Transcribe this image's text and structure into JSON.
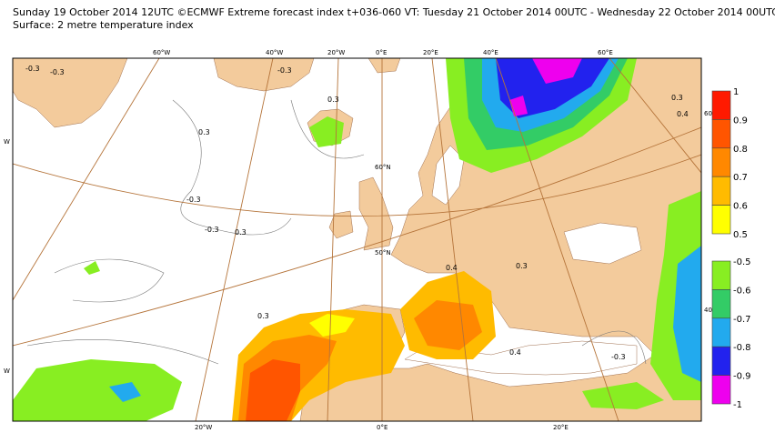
{
  "header": {
    "title": "Sunday 19 October 2014 12UTC ©ECMWF Extreme forecast index t+036-060 VT: Tuesday 21 October 2014 00UTC - Wednesday 22 October 2014 00UTC",
    "subtitle": "Surface: 2 metre temperature index"
  },
  "legend": {
    "positive": {
      "labels": [
        1,
        0.9,
        0.8,
        0.7,
        0.6,
        0.5
      ],
      "colors": [
        "#ff1a00",
        "#ff5500",
        "#ff8800",
        "#ffbb00",
        "#ffff00"
      ]
    },
    "negative": {
      "labels": [
        -0.5,
        -0.6,
        -0.7,
        -0.8,
        -0.9,
        -1
      ],
      "colors": [
        "#88ee22",
        "#33cc66",
        "#22aaee",
        "#2222ee",
        "#ee00ee"
      ]
    }
  },
  "map": {
    "graticule_labels": [
      "60°W",
      "40°W",
      "20°W",
      "0°E",
      "20°E",
      "40°E",
      "60°E",
      "60°N",
      "50°N",
      "20°W",
      "0°E",
      "20°E",
      "60",
      "40",
      "W",
      "W"
    ],
    "contour_labels": [
      "-0.3",
      "-0.3",
      "0.3",
      "-0.3",
      "0.3",
      "-0.3",
      "-0.3",
      "0.3",
      "0.4",
      "0.3",
      "0.3",
      "0.4",
      "-0.3",
      "0.3",
      "0.4"
    ]
  }
}
